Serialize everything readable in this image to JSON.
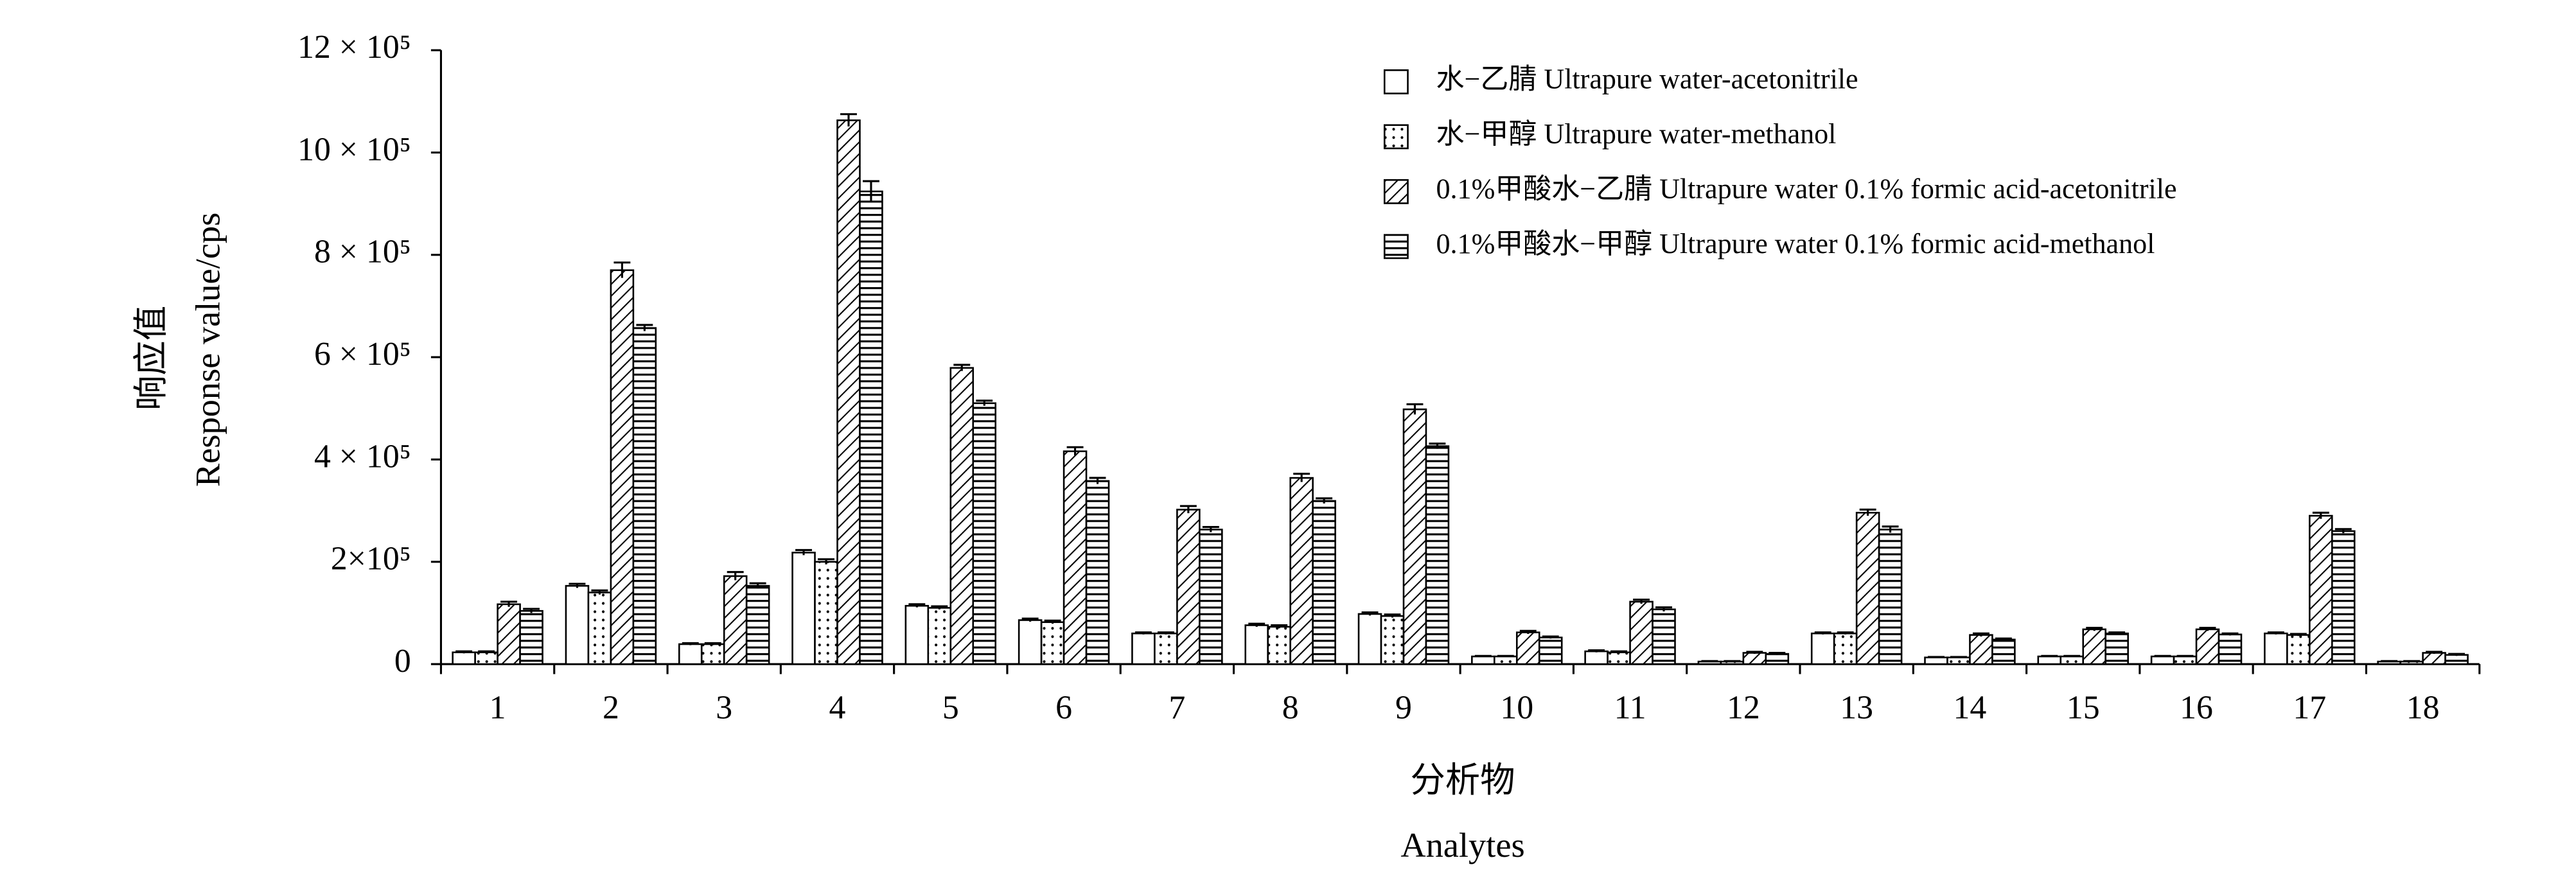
{
  "chart_data": {
    "type": "bar",
    "ylabel": "响应值",
    "ylabel_en": "Response value/cps",
    "xlabel": "分析物",
    "xlabel_en": "Analytes",
    "categories": [
      "1",
      "2",
      "3",
      "4",
      "5",
      "6",
      "7",
      "8",
      "9",
      "10",
      "11",
      "12",
      "13",
      "14",
      "15",
      "16",
      "17",
      "18"
    ],
    "ylim": [
      0,
      1200000
    ],
    "yticks": [
      0,
      {
        "value": 200000,
        "label": "2×10⁵"
      },
      {
        "value": 400000,
        "label": "4 × 10⁵"
      },
      {
        "value": 600000,
        "label": "6 × 10⁵"
      },
      {
        "value": 800000,
        "label": "8 × 10⁵"
      },
      {
        "value": 1000000,
        "label": "10 × 10⁵"
      },
      {
        "value": 1200000,
        "label": "12 × 10⁵"
      }
    ],
    "series": [
      {
        "name": "水−乙腈 Ultrapure water-acetonitrile",
        "color": "#000000",
        "pattern": "none",
        "values": [
          23000,
          153000,
          39000,
          218000,
          114000,
          86000,
          60000,
          76000,
          98000,
          15000,
          25000,
          5000,
          60000,
          13000,
          15000,
          15000,
          60000,
          5000
        ],
        "errors": [
          2000,
          4000,
          2000,
          5000,
          3000,
          3000,
          2000,
          3000,
          3000,
          1000,
          2000,
          1000,
          2000,
          1000,
          1000,
          1000,
          2000,
          1000
        ]
      },
      {
        "name": "水−甲醇 Ultrapure water-methanol",
        "color": "#000000",
        "pattern": "dots",
        "values": [
          23000,
          140000,
          39000,
          200000,
          110000,
          82000,
          60000,
          73000,
          94000,
          15000,
          23000,
          5000,
          60000,
          13000,
          15000,
          15000,
          57000,
          5000
        ],
        "errors": [
          2000,
          4000,
          2000,
          5000,
          3000,
          3000,
          2000,
          3000,
          3000,
          1000,
          2000,
          1000,
          2000,
          1000,
          1000,
          1000,
          2000,
          1000
        ]
      },
      {
        "name": "0.1%甲酸水−乙腈 Ultrapure water 0.1% formic acid-acetonitrile",
        "color": "#000000",
        "pattern": "diagonal",
        "values": [
          117000,
          770000,
          172000,
          1063000,
          579000,
          416000,
          302000,
          364000,
          498000,
          62000,
          122000,
          22000,
          296000,
          57000,
          68000,
          68000,
          290000,
          22000
        ],
        "errors": [
          5000,
          15000,
          8000,
          12000,
          6000,
          8000,
          7000,
          8000,
          10000,
          3000,
          4000,
          2000,
          6000,
          3000,
          3000,
          3000,
          6000,
          2000
        ]
      },
      {
        "name": "0.1%甲酸水−甲醇 Ultrapure water 0.1% formic acid-methanol",
        "color": "#000000",
        "pattern": "horizontal",
        "values": [
          104000,
          657000,
          153000,
          924000,
          510000,
          358000,
          263000,
          319000,
          426000,
          52000,
          107000,
          20000,
          263000,
          48000,
          60000,
          58000,
          260000,
          18000
        ],
        "errors": [
          4000,
          6000,
          5000,
          20000,
          5000,
          6000,
          5000,
          5000,
          5000,
          2000,
          4000,
          2000,
          6000,
          2000,
          2000,
          2000,
          4000,
          2000
        ]
      }
    ],
    "legend": "upper-right"
  }
}
